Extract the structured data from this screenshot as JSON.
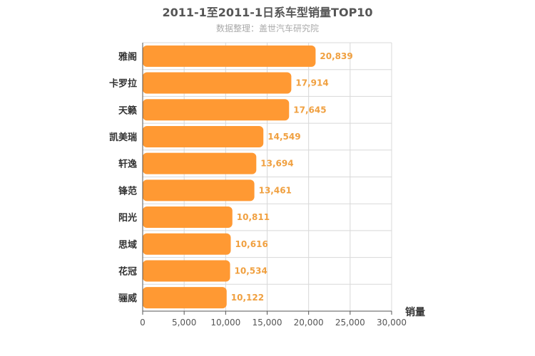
{
  "chart_data": {
    "type": "bar",
    "orientation": "horizontal",
    "title": "2011-1至2011-1日系车型销量TOP10",
    "subtitle": "数据整理：盖世汽车研究院",
    "xlabel": "销量",
    "categories": [
      "雅阁",
      "卡罗拉",
      "天籁",
      "凯美瑞",
      "轩逸",
      "锋范",
      "阳光",
      "思域",
      "花冠",
      "骊威"
    ],
    "values": [
      20839,
      17914,
      17645,
      14549,
      13694,
      13461,
      10811,
      10616,
      10534,
      10122
    ],
    "value_labels": [
      "20,839",
      "17,914",
      "17,645",
      "14,549",
      "13,694",
      "13,461",
      "10,811",
      "10,616",
      "10,534",
      "10,122"
    ],
    "xlim": [
      0,
      30000
    ],
    "xticks": [
      0,
      5000,
      10000,
      15000,
      20000,
      25000,
      30000
    ],
    "xtick_labels": [
      "0",
      "5,000",
      "10,000",
      "15,000",
      "20,000",
      "25,000",
      "30,000"
    ],
    "grid": true,
    "colors": {
      "bar": "#ff9933",
      "label": "#f0a040",
      "grid": "#d8d8d8",
      "axis": "#555555"
    }
  }
}
